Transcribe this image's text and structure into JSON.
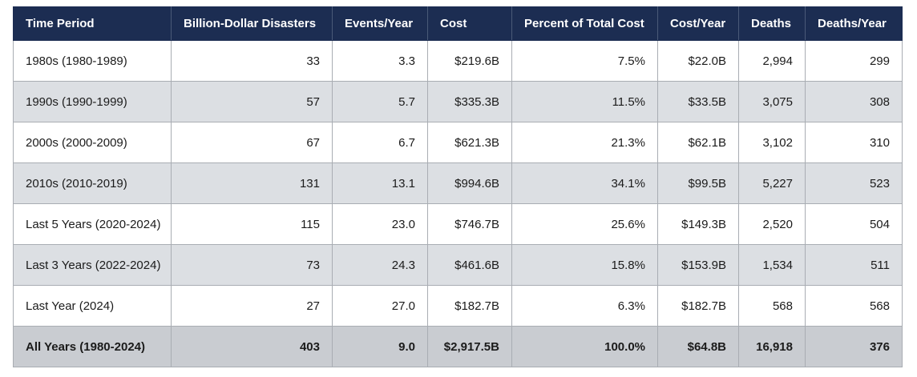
{
  "table": {
    "headers": [
      "Time Period",
      "Billion-Dollar Disasters",
      "Events/Year",
      "Cost",
      "Percent of Total Cost",
      "Cost/Year",
      "Deaths",
      "Deaths/Year"
    ],
    "rows": [
      [
        "1980s (1980-1989)",
        "33",
        "3.3",
        "$219.6B",
        "7.5%",
        "$22.0B",
        "2,994",
        "299"
      ],
      [
        "1990s (1990-1999)",
        "57",
        "5.7",
        "$335.3B",
        "11.5%",
        "$33.5B",
        "3,075",
        "308"
      ],
      [
        "2000s (2000-2009)",
        "67",
        "6.7",
        "$621.3B",
        "21.3%",
        "$62.1B",
        "3,102",
        "310"
      ],
      [
        "2010s (2010-2019)",
        "131",
        "13.1",
        "$994.6B",
        "34.1%",
        "$99.5B",
        "5,227",
        "523"
      ],
      [
        "Last 5 Years (2020-2024)",
        "115",
        "23.0",
        "$746.7B",
        "25.6%",
        "$149.3B",
        "2,520",
        "504"
      ],
      [
        "Last 3 Years (2022-2024)",
        "73",
        "24.3",
        "$461.6B",
        "15.8%",
        "$153.9B",
        "1,534",
        "511"
      ],
      [
        "Last Year (2024)",
        "27",
        "27.0",
        "$182.7B",
        "6.3%",
        "$182.7B",
        "568",
        "568"
      ]
    ],
    "total": [
      "All Years (1980-2024)",
      "403",
      "9.0",
      "$2,917.5B",
      "100.0%",
      "$64.8B",
      "16,918",
      "376"
    ]
  },
  "colors": {
    "header_bg": "#1c2d52",
    "row_odd": "#ffffff",
    "row_even": "#dcdfe3",
    "total_bg": "#c9ccd1"
  }
}
